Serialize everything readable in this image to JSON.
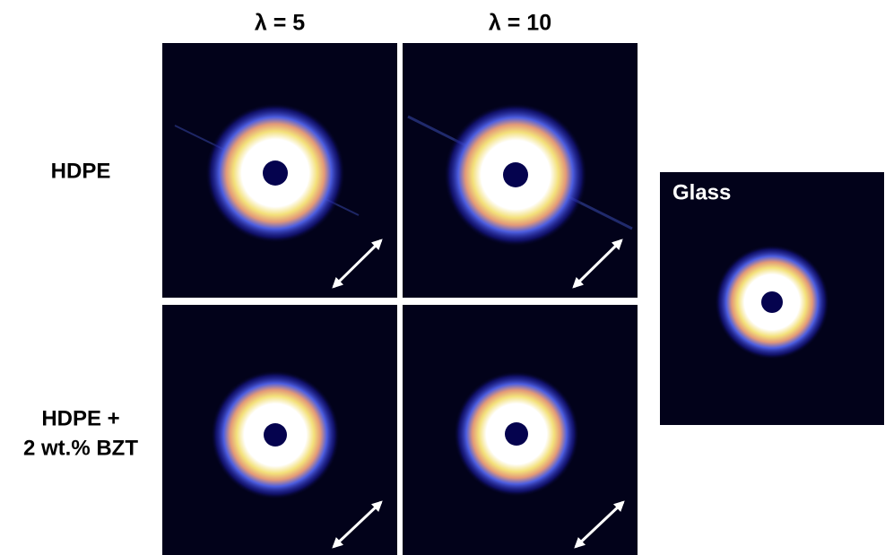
{
  "columns": [
    "λ = 5",
    "λ = 10"
  ],
  "rows": [
    {
      "label_lines": [
        "HDPE"
      ]
    },
    {
      "label_lines": [
        "HDPE +",
        "2 wt.% BZT"
      ]
    }
  ],
  "reference": {
    "label": "Glass"
  }
}
